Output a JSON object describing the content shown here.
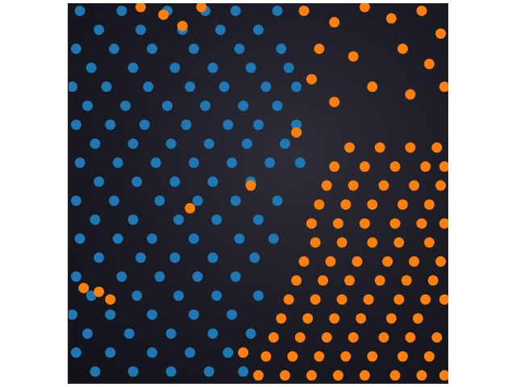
{
  "chart_data": {
    "type": "scatter",
    "xlim": [
      0,
      100
    ],
    "ylim": [
      0,
      100
    ],
    "tick_labels": false,
    "grid": false,
    "series": [
      {
        "color": "#1f77b4",
        "marker": "circle",
        "points": [
          [
            3,
            98
          ],
          [
            14,
            98
          ],
          [
            26,
            98
          ],
          [
            36,
            98
          ],
          [
            44,
            98
          ],
          [
            55,
            98
          ],
          [
            8,
            93
          ],
          [
            19,
            93
          ],
          [
            30,
            93
          ],
          [
            40,
            93
          ],
          [
            50,
            93
          ],
          [
            2,
            88
          ],
          [
            12,
            88
          ],
          [
            22,
            88
          ],
          [
            33,
            88
          ],
          [
            45,
            88
          ],
          [
            56,
            88
          ],
          [
            6,
            83
          ],
          [
            17,
            83
          ],
          [
            28,
            83
          ],
          [
            38,
            83
          ],
          [
            48,
            83
          ],
          [
            58,
            83
          ],
          [
            1,
            78
          ],
          [
            10,
            78
          ],
          [
            21,
            78
          ],
          [
            32,
            78
          ],
          [
            41,
            78
          ],
          [
            52,
            78
          ],
          [
            60,
            78
          ],
          [
            5,
            73
          ],
          [
            15,
            73
          ],
          [
            26,
            73
          ],
          [
            36,
            73
          ],
          [
            46,
            73
          ],
          [
            55,
            73
          ],
          [
            2,
            68
          ],
          [
            11,
            68
          ],
          [
            20,
            68
          ],
          [
            31,
            68
          ],
          [
            42,
            68
          ],
          [
            50,
            68
          ],
          [
            60,
            68
          ],
          [
            7,
            63
          ],
          [
            17,
            63
          ],
          [
            27,
            63
          ],
          [
            37,
            63
          ],
          [
            47,
            63
          ],
          [
            57,
            63
          ],
          [
            3,
            58
          ],
          [
            13,
            58
          ],
          [
            23,
            58
          ],
          [
            33,
            58
          ],
          [
            43,
            58
          ],
          [
            53,
            58
          ],
          [
            61,
            58
          ],
          [
            8,
            53
          ],
          [
            18,
            53
          ],
          [
            28,
            53
          ],
          [
            38,
            53
          ],
          [
            48,
            53
          ],
          [
            2,
            48
          ],
          [
            12,
            48
          ],
          [
            24,
            48
          ],
          [
            34,
            48
          ],
          [
            44,
            48
          ],
          [
            55,
            48
          ],
          [
            7,
            43
          ],
          [
            17,
            43
          ],
          [
            29,
            43
          ],
          [
            39,
            43
          ],
          [
            50,
            43
          ],
          [
            3,
            38
          ],
          [
            13,
            38
          ],
          [
            22,
            38
          ],
          [
            33,
            38
          ],
          [
            45,
            38
          ],
          [
            54,
            38
          ],
          [
            8,
            33
          ],
          [
            19,
            33
          ],
          [
            28,
            33
          ],
          [
            38,
            33
          ],
          [
            49,
            33
          ],
          [
            2,
            28
          ],
          [
            14,
            28
          ],
          [
            24,
            28
          ],
          [
            34,
            28
          ],
          [
            44,
            28
          ],
          [
            6,
            23
          ],
          [
            18,
            23
          ],
          [
            29,
            23
          ],
          [
            39,
            23
          ],
          [
            50,
            23
          ],
          [
            1,
            18
          ],
          [
            11,
            18
          ],
          [
            22,
            18
          ],
          [
            33,
            18
          ],
          [
            43,
            18
          ],
          [
            5,
            13
          ],
          [
            16,
            13
          ],
          [
            27,
            13
          ],
          [
            38,
            13
          ],
          [
            48,
            13
          ],
          [
            2,
            8
          ],
          [
            11,
            8
          ],
          [
            22,
            8
          ],
          [
            32,
            8
          ],
          [
            42,
            8
          ],
          [
            7,
            3
          ],
          [
            17,
            3
          ],
          [
            27,
            3
          ],
          [
            37,
            3
          ],
          [
            46,
            3
          ]
        ]
      },
      {
        "color": "#ff7f0e",
        "marker": "circle",
        "points": [
          [
            19,
            99
          ],
          [
            25,
            97
          ],
          [
            35,
            99
          ],
          [
            30,
            94
          ],
          [
            62,
            98
          ],
          [
            70,
            95
          ],
          [
            78,
            99
          ],
          [
            85,
            96
          ],
          [
            93,
            98
          ],
          [
            98,
            92
          ],
          [
            66,
            88
          ],
          [
            75,
            86
          ],
          [
            88,
            88
          ],
          [
            95,
            84
          ],
          [
            64,
            80
          ],
          [
            80,
            78
          ],
          [
            90,
            76
          ],
          [
            70,
            74
          ],
          [
            99,
            78
          ],
          [
            74,
            62
          ],
          [
            82,
            62
          ],
          [
            90,
            62
          ],
          [
            97,
            62
          ],
          [
            70,
            57
          ],
          [
            78,
            57
          ],
          [
            86,
            57
          ],
          [
            94,
            57
          ],
          [
            99,
            57
          ],
          [
            68,
            52
          ],
          [
            75,
            52
          ],
          [
            83,
            52
          ],
          [
            91,
            52
          ],
          [
            98,
            52
          ],
          [
            66,
            47
          ],
          [
            73,
            47
          ],
          [
            80,
            47
          ],
          [
            88,
            47
          ],
          [
            95,
            47
          ],
          [
            64,
            42
          ],
          [
            71,
            42
          ],
          [
            78,
            42
          ],
          [
            86,
            42
          ],
          [
            93,
            42
          ],
          [
            99,
            42
          ],
          [
            65,
            37
          ],
          [
            72,
            37
          ],
          [
            80,
            37
          ],
          [
            87,
            37
          ],
          [
            95,
            37
          ],
          [
            62,
            32
          ],
          [
            69,
            32
          ],
          [
            76,
            32
          ],
          [
            84,
            32
          ],
          [
            91,
            32
          ],
          [
            98,
            32
          ],
          [
            60,
            27
          ],
          [
            67,
            27
          ],
          [
            74,
            27
          ],
          [
            82,
            27
          ],
          [
            89,
            27
          ],
          [
            96,
            27
          ],
          [
            58,
            22
          ],
          [
            65,
            22
          ],
          [
            72,
            22
          ],
          [
            79,
            22
          ],
          [
            87,
            22
          ],
          [
            94,
            22
          ],
          [
            99,
            22
          ],
          [
            56,
            17
          ],
          [
            63,
            17
          ],
          [
            70,
            17
          ],
          [
            77,
            17
          ],
          [
            85,
            17
          ],
          [
            92,
            17
          ],
          [
            54,
            12
          ],
          [
            61,
            12
          ],
          [
            68,
            12
          ],
          [
            75,
            12
          ],
          [
            83,
            12
          ],
          [
            90,
            12
          ],
          [
            97,
            12
          ],
          [
            52,
            7
          ],
          [
            59,
            7
          ],
          [
            66,
            7
          ],
          [
            73,
            7
          ],
          [
            80,
            7
          ],
          [
            88,
            7
          ],
          [
            95,
            7
          ],
          [
            50,
            2
          ],
          [
            57,
            2
          ],
          [
            64,
            2
          ],
          [
            71,
            2
          ],
          [
            78,
            2
          ],
          [
            86,
            2
          ],
          [
            93,
            2
          ],
          [
            99,
            2
          ],
          [
            4,
            25
          ],
          [
            8,
            24
          ],
          [
            11,
            22
          ],
          [
            48,
            52
          ],
          [
            32,
            46
          ],
          [
            46,
            8
          ],
          [
            60,
            66
          ]
        ]
      }
    ]
  }
}
